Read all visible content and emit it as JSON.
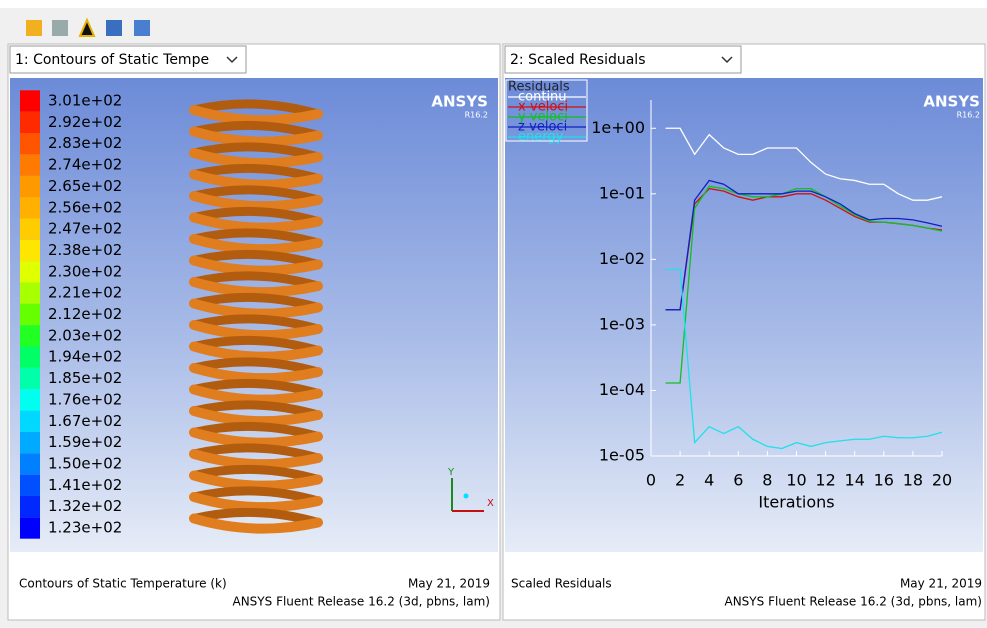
{
  "left_panel": {
    "dropdown": "1: Contours of Static Tempe",
    "logo": "ANSYS",
    "version": "R16.2",
    "colorbar": {
      "labels": [
        "3.01e+02",
        "2.92e+02",
        "2.83e+02",
        "2.74e+02",
        "2.65e+02",
        "2.56e+02",
        "2.47e+02",
        "2.38e+02",
        "2.30e+02",
        "2.21e+02",
        "2.12e+02",
        "2.03e+02",
        "1.94e+02",
        "1.85e+02",
        "1.76e+02",
        "1.67e+02",
        "1.59e+02",
        "1.50e+02",
        "1.41e+02",
        "1.32e+02",
        "1.23e+02"
      ],
      "colors": [
        "#ff0000",
        "#ff2a00",
        "#ff5500",
        "#ff7a00",
        "#ff9900",
        "#ffb000",
        "#ffcc00",
        "#ffe600",
        "#e0ff00",
        "#a8ff00",
        "#66ff00",
        "#22ff22",
        "#00ff66",
        "#00ffaa",
        "#00ffee",
        "#00d8ff",
        "#00aaff",
        "#0080ff",
        "#0050ff",
        "#0028ff",
        "#0000ff"
      ]
    },
    "triad": {
      "x": "X",
      "y": "Y"
    },
    "footer": {
      "title": "Contours of Static Temperature (k)",
      "date": "May 21, 2019",
      "release": "ANSYS Fluent Release 16.2 (3d, pbns, lam)"
    }
  },
  "right_panel": {
    "dropdown": "2: Scaled Residuals",
    "logo": "ANSYS",
    "version": "R16.2",
    "footer": {
      "title": "Scaled Residuals",
      "date": "May 21, 2019",
      "release": "ANSYS Fluent Release 16.2 (3d, pbns, lam)"
    }
  },
  "chart_data": {
    "type": "line",
    "legend_title": "Residuals",
    "x_label": "Iterations",
    "y_log": true,
    "x": [
      1,
      2,
      3,
      4,
      5,
      6,
      7,
      8,
      9,
      10,
      11,
      12,
      13,
      14,
      15,
      16,
      17,
      18,
      19,
      20
    ],
    "xlim": [
      0,
      20
    ],
    "xticks": [
      0,
      2,
      4,
      6,
      8,
      10,
      12,
      14,
      16,
      18,
      20
    ],
    "ylim": [
      1e-05,
      2.7
    ],
    "yticks": [
      {
        "value": 1,
        "label": "1e+00"
      },
      {
        "value": 0.1,
        "label": "1e-01"
      },
      {
        "value": 0.01,
        "label": "1e-02"
      },
      {
        "value": 0.001,
        "label": "1e-03"
      },
      {
        "value": 0.0001,
        "label": "1e-04"
      },
      {
        "value": 1e-05,
        "label": "1e-05"
      }
    ],
    "series": [
      {
        "name": "continu",
        "color": "#ffffff",
        "values": [
          1.0,
          1.0,
          0.4,
          0.8,
          0.5,
          0.4,
          0.4,
          0.5,
          0.5,
          0.5,
          0.3,
          0.2,
          0.17,
          0.16,
          0.14,
          0.14,
          0.1,
          0.08,
          0.08,
          0.09
        ]
      },
      {
        "name": "x-veloci",
        "color": "#d01010",
        "values": [
          0.0017,
          0.0017,
          0.07,
          0.12,
          0.11,
          0.09,
          0.08,
          0.09,
          0.09,
          0.1,
          0.1,
          0.08,
          0.06,
          0.045,
          0.037,
          0.037,
          0.035,
          0.033,
          0.03,
          0.028
        ]
      },
      {
        "name": "y-veloci",
        "color": "#10c020",
        "values": [
          0.00013,
          0.00013,
          0.06,
          0.13,
          0.12,
          0.1,
          0.09,
          0.09,
          0.1,
          0.12,
          0.12,
          0.09,
          0.065,
          0.048,
          0.038,
          0.037,
          0.035,
          0.033,
          0.03,
          0.027
        ]
      },
      {
        "name": "z-veloci",
        "color": "#1020c0",
        "values": [
          0.0017,
          0.0017,
          0.08,
          0.16,
          0.14,
          0.1,
          0.1,
          0.1,
          0.1,
          0.11,
          0.11,
          0.09,
          0.07,
          0.05,
          0.04,
          0.042,
          0.042,
          0.04,
          0.036,
          0.032
        ]
      },
      {
        "name": "energy",
        "color": "#20e0e8",
        "values": [
          0.007,
          0.007,
          1.6e-05,
          2.8e-05,
          2.2e-05,
          2.8e-05,
          1.8e-05,
          1.4e-05,
          1.3e-05,
          1.6e-05,
          1.4e-05,
          1.6e-05,
          1.7e-05,
          1.8e-05,
          1.8e-05,
          2e-05,
          1.9e-05,
          1.9e-05,
          2e-05,
          2.3e-05
        ]
      }
    ]
  }
}
